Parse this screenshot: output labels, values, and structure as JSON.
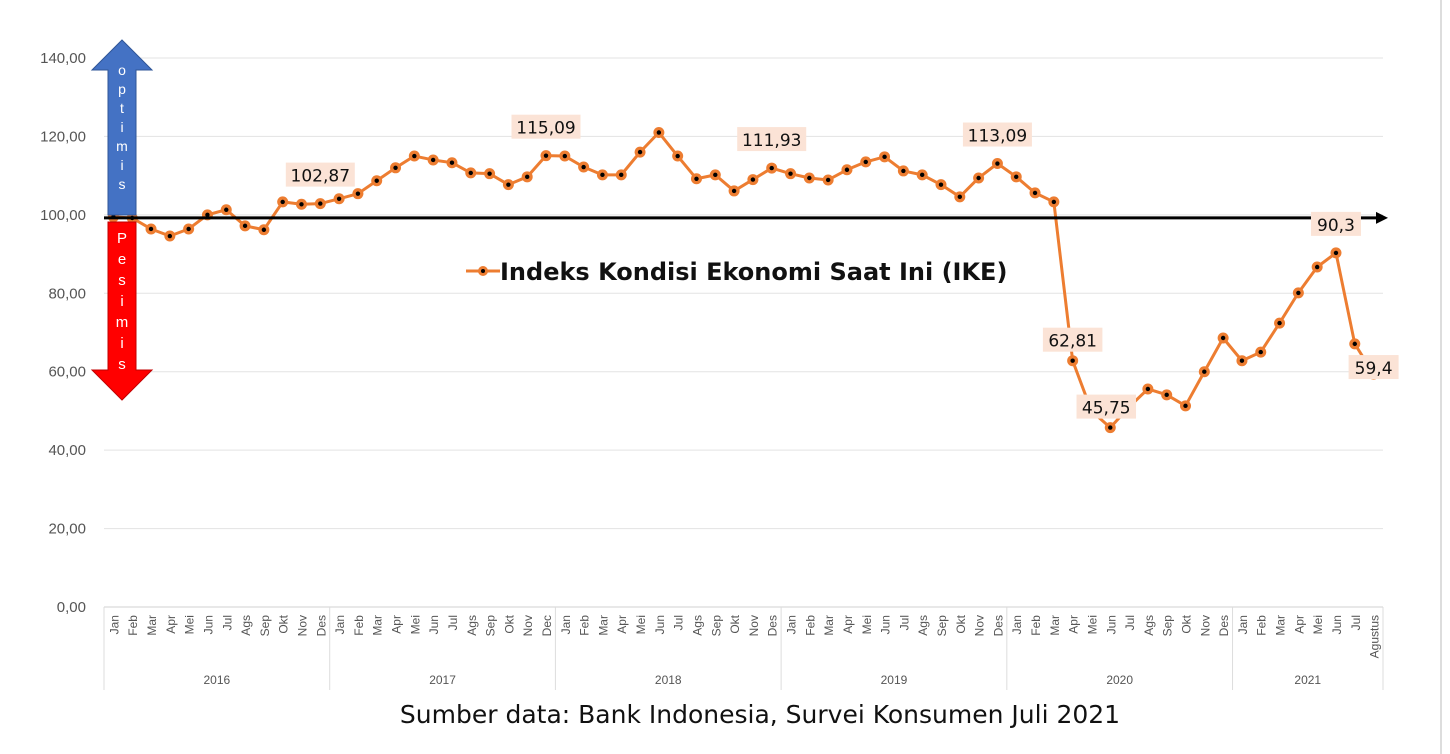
{
  "chart_data": {
    "type": "line",
    "title": "",
    "xlabel": "",
    "ylabel": "",
    "ylim": [
      0,
      140
    ],
    "yticks": [
      "0,00",
      "20,00",
      "40,00",
      "60,00",
      "80,00",
      "100,00",
      "120,00",
      "140,00"
    ],
    "ytick_values": [
      0,
      20,
      40,
      60,
      80,
      100,
      120,
      140
    ],
    "grid": true,
    "legend": {
      "label": "Indeks Kondisi Ekonomi Saat Ini (IKE)",
      "placement": "center"
    },
    "years": [
      {
        "label": "2016",
        "months": [
          "Jan",
          "Feb",
          "Mar",
          "Apr",
          "Mei",
          "Jun",
          "Jul",
          "Ags",
          "Sep",
          "Okt",
          "Nov",
          "Des"
        ]
      },
      {
        "label": "2017",
        "months": [
          "Jan",
          "Feb",
          "Mar",
          "Apr",
          "Mei",
          "Jun",
          "Jul",
          "Ags",
          "Sep",
          "Okt",
          "Nov",
          "Dec"
        ]
      },
      {
        "label": "2018",
        "months": [
          "Jan",
          "Feb",
          "Mar",
          "Apr",
          "Mei",
          "Jun",
          "Jul",
          "Ags",
          "Sep",
          "Okt",
          "Nov",
          "Des"
        ]
      },
      {
        "label": "2019",
        "months": [
          "Jan",
          "Feb",
          "Mar",
          "Apr",
          "Mei",
          "Jun",
          "Jul",
          "Ags",
          "Sep",
          "Okt",
          "Nov",
          "Des"
        ]
      },
      {
        "label": "2020",
        "months": [
          "Jan",
          "Feb",
          "Mar",
          "Apr",
          "Mei",
          "Jun",
          "Jul",
          "Ags",
          "Sep",
          "Okt",
          "Nov",
          "Des"
        ]
      },
      {
        "label": "2021",
        "months": [
          "Jan",
          "Feb",
          "Mar",
          "Apr",
          "Mei",
          "Jun",
          "Jul",
          "Agustus"
        ]
      }
    ],
    "series": [
      {
        "name": "Indeks Kondisi Ekonomi Saat Ini (IKE)",
        "color": "#ED7D31",
        "values": [
          99.5,
          99.2,
          96.4,
          94.6,
          96.4,
          100.0,
          101.3,
          97.2,
          96.2,
          103.3,
          102.7,
          102.87,
          104.1,
          105.4,
          108.7,
          112.0,
          115.0,
          114.0,
          113.3,
          110.7,
          110.5,
          107.7,
          109.7,
          115.09,
          115.0,
          112.2,
          110.2,
          110.2,
          116.0,
          121.0,
          115.0,
          109.2,
          110.2,
          106.1,
          109.0,
          111.93,
          110.5,
          109.4,
          108.9,
          111.5,
          113.5,
          114.8,
          111.2,
          110.2,
          107.7,
          104.6,
          109.4,
          113.09,
          109.7,
          105.6,
          103.3,
          62.81,
          50.0,
          45.75,
          51.0,
          55.6,
          54.1,
          51.3,
          60.0,
          68.6,
          62.8,
          65.0,
          72.4,
          80.1,
          86.7,
          90.3,
          67.1,
          59.4
        ]
      }
    ],
    "data_labels": [
      {
        "index": 11,
        "text": "102,87"
      },
      {
        "index": 23,
        "text": "115,09"
      },
      {
        "index": 35,
        "text": "111,93"
      },
      {
        "index": 47,
        "text": "113,09"
      },
      {
        "index": 51,
        "text": "62,81"
      },
      {
        "index": 53,
        "text": "45,75"
      },
      {
        "index": 65,
        "text": "90,3"
      },
      {
        "index": 67,
        "text": "59,4"
      }
    ],
    "reference_line": 100,
    "annotations": {
      "up": "optimis",
      "down": "Pesimis",
      "up_color": "#4472C4",
      "down_color": "#FF0000"
    }
  },
  "source": "Sumber data: Bank Indonesia, Survei Konsumen Juli 2021"
}
